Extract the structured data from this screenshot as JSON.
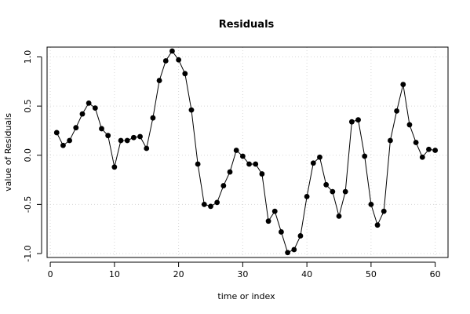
{
  "chart_data": {
    "type": "line",
    "title": "Residuals",
    "xlabel": "time or index",
    "ylabel": "value of Residuals",
    "xlim": [
      -0.5,
      62
    ],
    "ylim": [
      -1.04,
      1.1
    ],
    "x_ticks": [
      0,
      10,
      20,
      30,
      40,
      50,
      60
    ],
    "x_tick_labels": [
      "0",
      "10",
      "20",
      "30",
      "40",
      "50",
      "60"
    ],
    "y_ticks": [
      -1.0,
      -0.5,
      0.0,
      0.5,
      1.0
    ],
    "y_tick_labels": [
      "-1.0",
      "-0.5",
      "0.0",
      "0.5",
      "1.0"
    ],
    "grid": true,
    "markers": "filled-circle",
    "series": [
      {
        "x": [
          1,
          2,
          3,
          4,
          5,
          6,
          7,
          8,
          9,
          10,
          11,
          12,
          13,
          14,
          15,
          16,
          17,
          18,
          19,
          20,
          21,
          22,
          23,
          24,
          25,
          26,
          27,
          28,
          29,
          30,
          31,
          32,
          33,
          34,
          35,
          36,
          37,
          38,
          39,
          40,
          41,
          42,
          43,
          44,
          45,
          46,
          47,
          48,
          49,
          50,
          51,
          52,
          53,
          54,
          55,
          56,
          57,
          58,
          59,
          60
        ],
        "values": [
          0.23,
          0.1,
          0.15,
          0.28,
          0.42,
          0.53,
          0.48,
          0.27,
          0.2,
          -0.12,
          0.15,
          0.15,
          0.18,
          0.19,
          0.07,
          0.38,
          0.76,
          0.96,
          1.06,
          0.97,
          0.83,
          0.46,
          -0.09,
          -0.5,
          -0.52,
          -0.48,
          -0.31,
          -0.17,
          0.05,
          -0.01,
          -0.09,
          -0.09,
          -0.19,
          -0.67,
          -0.57,
          -0.78,
          -0.99,
          -0.96,
          -0.82,
          -0.42,
          -0.08,
          -0.02,
          -0.3,
          -0.37,
          -0.62,
          -0.37,
          0.34,
          0.36,
          -0.01,
          -0.5,
          -0.71,
          -0.57,
          0.15,
          0.45,
          0.72,
          0.31,
          0.13,
          -0.02,
          0.06,
          0.05
        ]
      }
    ]
  }
}
